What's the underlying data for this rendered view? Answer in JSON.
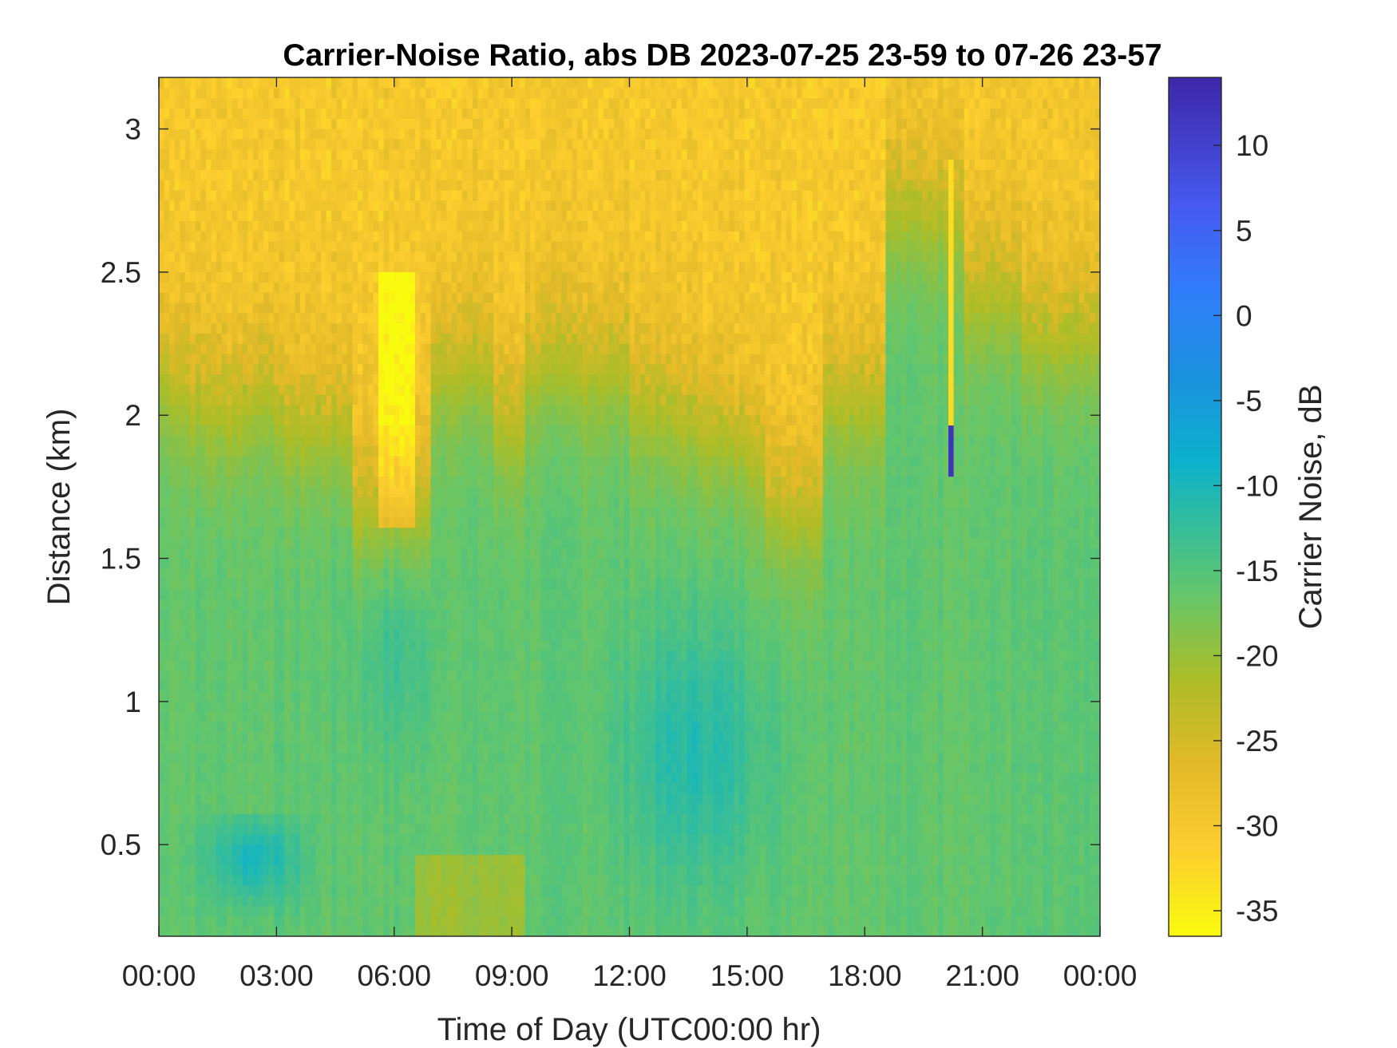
{
  "chart_data": {
    "type": "heatmap",
    "title": "Carrier-Noise Ratio, abs DB 2023-07-25 23-59 to 07-26 23-57",
    "xlabel": "Time of Day (UTC00:00 hr)",
    "ylabel": "Distance (km)",
    "colorbar_label": "Carrier Noise, dB",
    "colormap": "parula-reversed",
    "x_unit": "hours",
    "xlim": [
      0,
      24
    ],
    "ylim": [
      0.18,
      3.18
    ],
    "clim": [
      -36.5,
      14
    ],
    "x_ticks": [
      0,
      3,
      6,
      9,
      12,
      15,
      18,
      21,
      24
    ],
    "x_tick_labels": [
      "00:00",
      "03:00",
      "06:00",
      "09:00",
      "12:00",
      "15:00",
      "18:00",
      "21:00",
      "00:00"
    ],
    "y_ticks": [
      0.5,
      1,
      1.5,
      2,
      2.5,
      3
    ],
    "y_tick_labels": [
      "0.5",
      "1",
      "1.5",
      "2",
      "2.5",
      "3"
    ],
    "colorbar_ticks": [
      10,
      5,
      0,
      -5,
      -10,
      -15,
      -20,
      -25,
      -30,
      -35
    ],
    "colorbar_tick_labels": [
      "10",
      "5",
      "0",
      "-5",
      "-10",
      "-15",
      "-20",
      "-25",
      "-30",
      "-35"
    ],
    "colors": {
      "low_snr": "#f9fb0e",
      "mid": "#27b9c8",
      "high_snr": "#3e26a8",
      "axes": "#262626"
    },
    "features": {
      "top_band_value_db": -30,
      "lower_band_value_db": -16,
      "midday_minimum_center": {
        "time_hr": 13.7,
        "distance_km": 0.82,
        "value_db": -11
      },
      "early_morning_blue_patches_db": -8,
      "spike_at_20_15": {
        "time_hr": 20.2,
        "distance_range_km": [
          1.8,
          2.9
        ],
        "value_db": -33,
        "min_value_db": 12
      }
    }
  }
}
